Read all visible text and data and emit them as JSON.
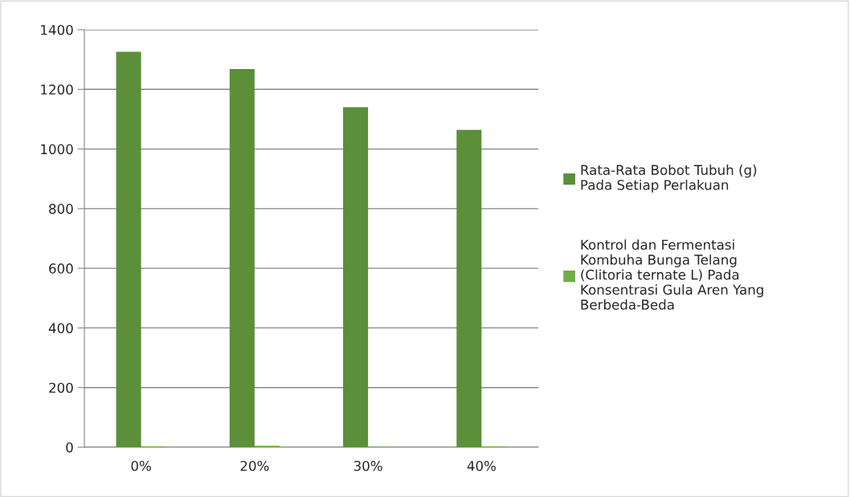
{
  "chart_data": {
    "type": "bar",
    "categories": [
      "0%",
      "20%",
      "30%",
      "40%"
    ],
    "series": [
      {
        "name": "Rata-Rata Bobot Tubuh (g)\nPada Setiap Perlakuan",
        "color": "#5b8f3a",
        "values": [
          1326,
          1268,
          1140,
          1064
        ]
      },
      {
        "name": "Kontrol dan Fermentasi\nKombuha Bunga Telang\n(Clitoria ternate L) Pada\nKonsentrasi Gula Aren Yang\nBerbeda-Beda",
        "color": "#70ad47",
        "values": [
          3,
          5,
          2,
          3
        ]
      }
    ],
    "ylim": [
      0,
      1400
    ],
    "yticks": [
      0,
      200,
      400,
      600,
      800,
      1000,
      1200,
      1400
    ],
    "grid": "y",
    "legend": "right"
  }
}
